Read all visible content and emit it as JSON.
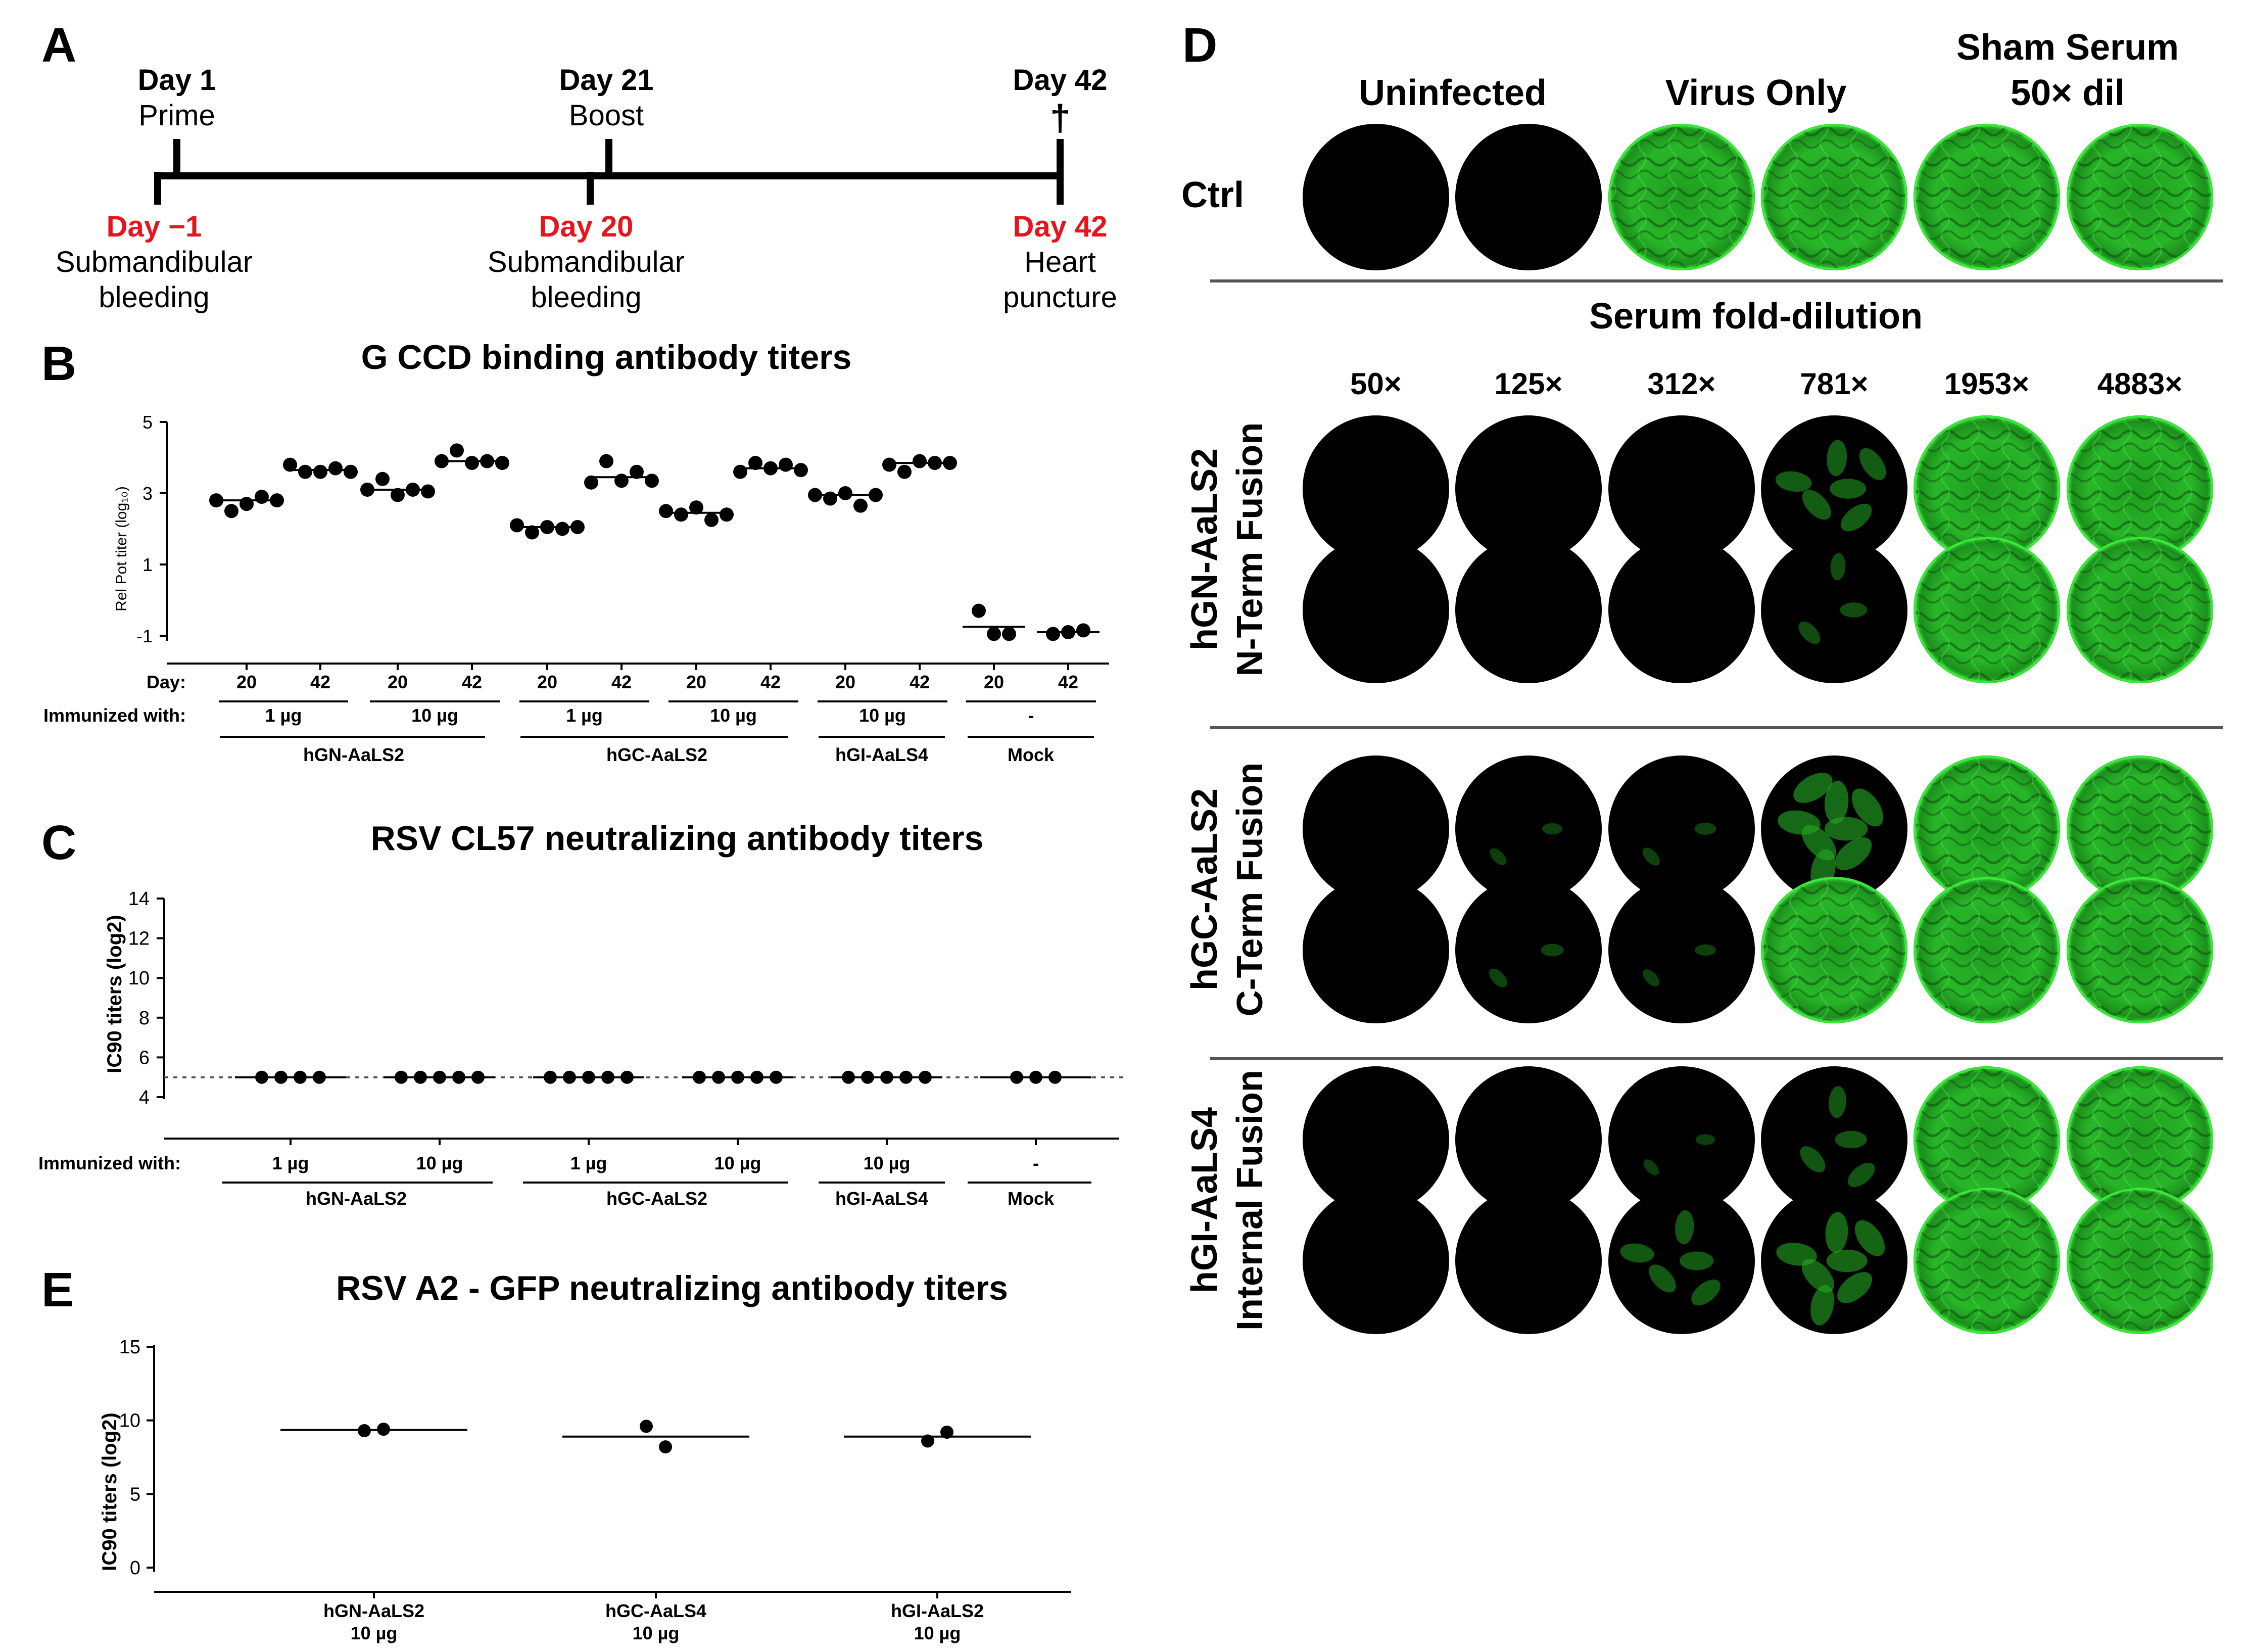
{
  "panel_letters": {
    "a": "A",
    "b": "B",
    "c": "C",
    "d": "D",
    "e": "E"
  },
  "colors": {
    "ink": "#000000",
    "red": "#e8141b",
    "green": "#2bd62b",
    "well_dark": "#000000"
  },
  "timeline": {
    "events_top": [
      {
        "day": "Day 1",
        "label": "Prime"
      },
      {
        "day": "Day 21",
        "label": "Boost"
      },
      {
        "day": "Day 42",
        "label": "†"
      }
    ],
    "events_bottom": [
      {
        "day": "Day −1",
        "label1": "Submandibular",
        "label2": "bleeding"
      },
      {
        "day": "Day 20",
        "label1": "Submandibular",
        "label2": "bleeding"
      },
      {
        "day": "Day 42",
        "label1": "Heart",
        "label2": "puncture"
      }
    ]
  },
  "chart_data": [
    {
      "id": "B",
      "type": "scatter",
      "title": "G CCD binding antibody titers",
      "ylabel": "Rel Pot titer (log₁₀)",
      "ylim": [
        -1,
        5
      ],
      "yticks": [
        "5",
        "3",
        "1",
        "-1"
      ],
      "row_day_label": "Day:",
      "row_immunized_label": "Immunized with:",
      "days": [
        "20",
        "42",
        "20",
        "42",
        "20",
        "42",
        "20",
        "42",
        "20",
        "42",
        "20",
        "42"
      ],
      "doses": [
        "1 µg",
        "10 µg",
        "1 µg",
        "10 µg",
        "10 µg",
        "-"
      ],
      "groups": [
        "hGN-AaLS2",
        "hGC-AaLS2",
        "hGI-AaLS4",
        "Mock"
      ],
      "series": [
        {
          "values": [
            2.8,
            2.5,
            2.7,
            2.9,
            2.8
          ],
          "median": 2.8
        },
        {
          "values": [
            3.8,
            3.6,
            3.6,
            3.7,
            3.6
          ],
          "median": 3.65
        },
        {
          "values": [
            3.1,
            3.4,
            2.95,
            3.1,
            3.05
          ],
          "median": 3.1
        },
        {
          "values": [
            3.9,
            4.2,
            3.85,
            3.9,
            3.85
          ],
          "median": 3.9
        },
        {
          "values": [
            2.1,
            1.9,
            2.05,
            2.0,
            2.05
          ],
          "median": 2.05
        },
        {
          "values": [
            3.3,
            3.9,
            3.35,
            3.6,
            3.35
          ],
          "median": 3.45
        },
        {
          "values": [
            2.5,
            2.4,
            2.6,
            2.25,
            2.4
          ],
          "median": 2.45
        },
        {
          "values": [
            3.6,
            3.85,
            3.7,
            3.8,
            3.65
          ],
          "median": 3.7
        },
        {
          "values": [
            2.95,
            2.85,
            3.0,
            2.65,
            2.95
          ],
          "median": 2.95
        },
        {
          "values": [
            3.8,
            3.6,
            3.9,
            3.85,
            3.85
          ],
          "median": 3.85
        },
        {
          "values": [
            -0.3,
            -0.95,
            -0.95
          ],
          "median": -0.75
        },
        {
          "values": [
            -0.95,
            -0.9,
            -0.85
          ],
          "median": -0.9
        }
      ]
    },
    {
      "id": "C",
      "type": "scatter",
      "title": "RSV CL57 neutralizing antibody titers",
      "ylabel": "IC90 titers (log2)",
      "ylim": [
        4,
        14
      ],
      "yticks": [
        "14",
        "12",
        "10",
        "8",
        "6",
        "4"
      ],
      "threshold": 5,
      "row_immunized_label": "Immunized with:",
      "doses": [
        "1 µg",
        "10 µg",
        "1 µg",
        "10 µg",
        "10 µg",
        "-"
      ],
      "groups": [
        "hGN-AaLS2",
        "hGC-AaLS2",
        "hGI-AaLS4",
        "Mock"
      ],
      "series": [
        {
          "values": [
            5,
            5,
            5,
            5
          ],
          "median": 5
        },
        {
          "values": [
            5,
            5,
            5,
            5,
            5
          ],
          "median": 5
        },
        {
          "values": [
            5,
            5,
            5,
            5,
            5
          ],
          "median": 5
        },
        {
          "values": [
            5,
            5,
            5,
            5,
            5
          ],
          "median": 5
        },
        {
          "values": [
            5,
            5,
            5,
            5,
            5
          ],
          "median": 5
        },
        {
          "values": [
            5,
            5,
            5
          ],
          "median": 5
        }
      ]
    },
    {
      "id": "E",
      "type": "scatter",
      "title": "RSV A2 - GFP neutralizing antibody titers",
      "ylabel": "IC90 titers (log2)",
      "ylim": [
        0,
        15
      ],
      "yticks": [
        "15",
        "10",
        "5",
        "0"
      ],
      "categories": [
        {
          "name": "hGN-AaLS2",
          "dose": "10 µg"
        },
        {
          "name": "hGC-AaLS4",
          "dose": "10 µg"
        },
        {
          "name": "hGI-AaLS2",
          "dose": "10 µg"
        }
      ],
      "series": [
        {
          "values": [
            9.3,
            9.4
          ],
          "median": 9.35
        },
        {
          "values": [
            9.6,
            8.2
          ],
          "median": 8.9
        },
        {
          "values": [
            8.6,
            9.2
          ],
          "median": 8.9
        }
      ]
    }
  ],
  "panel_d": {
    "ctrl_label": "Ctrl",
    "ctrl_headers": {
      "uninfected": "Uninfected",
      "virus_only": "Virus Only",
      "sham1": "Sham Serum",
      "sham2": "50× dil"
    },
    "ctrl_wells": [
      0,
      0,
      1,
      1,
      1,
      1
    ],
    "dilution_title": "Serum fold-dilution",
    "dilutions": [
      "50×",
      "125×",
      "312×",
      "781×",
      "1953×",
      "4883×"
    ],
    "groups": [
      {
        "line1": "hGN-AaLS2",
        "line2": "N-Term Fusion",
        "rows": [
          [
            0,
            0,
            0,
            0.4,
            1,
            1
          ],
          [
            0,
            0,
            0,
            0.2,
            1,
            1
          ]
        ]
      },
      {
        "line1": "hGC-AaLS2",
        "line2": "C-Term Fusion",
        "rows": [
          [
            0,
            0.05,
            0.08,
            0.55,
            1,
            1
          ],
          [
            0,
            0.1,
            0.06,
            0.95,
            1,
            1
          ]
        ]
      },
      {
        "line1": "hGI-AaLS4",
        "line2": "Internal Fusion",
        "rows": [
          [
            0,
            0,
            0.03,
            0.3,
            1,
            1
          ],
          [
            0,
            0,
            0.35,
            0.5,
            1,
            1
          ]
        ]
      }
    ]
  }
}
